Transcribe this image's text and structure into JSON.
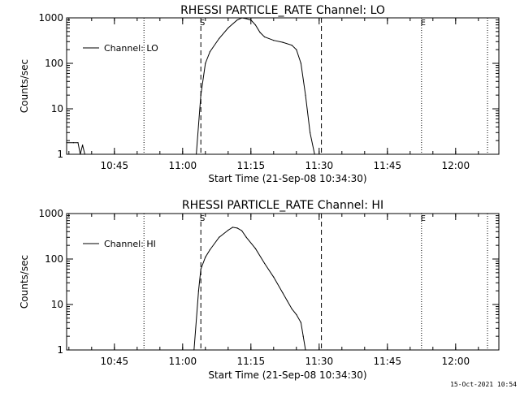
{
  "footer": {
    "timestamp": "15-Oct-2021 10:54"
  },
  "chart_data": [
    {
      "type": "line",
      "title": "RHESSI PARTICLE_RATE Channel: LO",
      "xlabel": "Start Time (21-Sep-08 10:34:30)",
      "ylabel": "Counts/sec",
      "y_scale": "log",
      "ylim": [
        1,
        1000
      ],
      "xlim": [
        "10:34:30",
        "12:09:30"
      ],
      "x_ticks": [
        "10:45",
        "11:00",
        "11:15",
        "11:30",
        "11:45",
        "12:00"
      ],
      "y_ticks": [
        "1",
        "10",
        "100",
        "1000"
      ],
      "legend": {
        "position": "top-left"
      },
      "series": [
        {
          "name": "Channel: LO",
          "x": [
            "10:34:30",
            "10:36:00",
            "10:37:00",
            "10:37:30",
            "10:38:00",
            "10:38:30",
            "11:03:00",
            "11:04:00",
            "11:05:00",
            "11:06:00",
            "11:08:00",
            "11:10:00",
            "11:12:00",
            "11:13:00",
            "11:14:00",
            "11:15:00",
            "11:16:00",
            "11:17:00",
            "11:18:00",
            "11:20:00",
            "11:22:00",
            "11:24:00",
            "11:25:00",
            "11:26:00",
            "11:27:00",
            "11:28:00",
            "11:29:00"
          ],
          "values": [
            1.8,
            1.8,
            1.8,
            1.0,
            1.6,
            1.0,
            1.0,
            20,
            100,
            180,
            350,
            600,
            900,
            1000,
            960,
            900,
            700,
            480,
            380,
            320,
            290,
            250,
            200,
            100,
            20,
            3,
            1
          ]
        }
      ],
      "markers": [
        {
          "time": "10:51:30",
          "style": "dotted",
          "label": ""
        },
        {
          "time": "11:04:00",
          "style": "dashed",
          "label": "S"
        },
        {
          "time": "11:30:30",
          "style": "dashed",
          "label": ""
        },
        {
          "time": "11:52:30",
          "style": "dotted",
          "label": "E"
        },
        {
          "time": "12:07:00",
          "style": "dotted",
          "label": ""
        }
      ]
    },
    {
      "type": "line",
      "title": "RHESSI PARTICLE_RATE Channel: HI",
      "xlabel": "Start Time (21-Sep-08 10:34:30)",
      "ylabel": "Counts/sec",
      "y_scale": "log",
      "ylim": [
        1,
        1000
      ],
      "xlim": [
        "10:34:30",
        "12:09:30"
      ],
      "x_ticks": [
        "10:45",
        "11:00",
        "11:15",
        "11:30",
        "11:45",
        "12:00"
      ],
      "y_ticks": [
        "1",
        "10",
        "100",
        "1000"
      ],
      "legend": {
        "position": "top-left"
      },
      "series": [
        {
          "name": "Channel: HI",
          "x": [
            "11:02:30",
            "11:03:30",
            "11:04:00",
            "11:05:00",
            "11:06:00",
            "11:08:00",
            "11:10:00",
            "11:11:00",
            "11:12:00",
            "11:13:00",
            "11:14:00",
            "11:16:00",
            "11:18:00",
            "11:20:00",
            "11:22:00",
            "11:23:00",
            "11:24:00",
            "11:25:00",
            "11:26:00",
            "11:26:30",
            "11:27:00"
          ],
          "values": [
            1,
            20,
            60,
            110,
            160,
            300,
            430,
            500,
            480,
            420,
            300,
            170,
            80,
            40,
            18,
            12,
            8,
            6,
            4,
            2,
            1
          ]
        }
      ],
      "markers": [
        {
          "time": "10:51:30",
          "style": "dotted",
          "label": ""
        },
        {
          "time": "11:04:00",
          "style": "dashed",
          "label": "S"
        },
        {
          "time": "11:30:30",
          "style": "dashed",
          "label": ""
        },
        {
          "time": "11:52:30",
          "style": "dotted",
          "label": "E"
        },
        {
          "time": "12:07:00",
          "style": "dotted",
          "label": ""
        }
      ]
    }
  ]
}
